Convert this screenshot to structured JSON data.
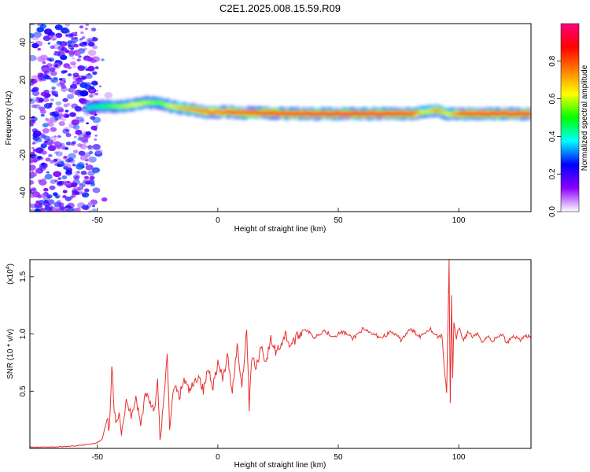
{
  "title": "C2E1.2025.008.15.59.R09",
  "chart_data": [
    {
      "type": "heatmap",
      "xlabel": "Height of straight line (km)",
      "ylabel": "Frequency (Hz)",
      "xlim": [
        -78,
        130
      ],
      "ylim": [
        -50,
        50
      ],
      "xticks": [
        -50,
        0,
        50,
        100
      ],
      "yticks": [
        -40,
        -20,
        0,
        20,
        40
      ],
      "colorbar": {
        "label": "Normalized spectral amplitude",
        "ticks": [
          "0.0",
          "0.2",
          "0.4",
          "0.6",
          "0.8"
        ],
        "tick_values": [
          0,
          0.2,
          0.4,
          0.6,
          0.8
        ],
        "range": [
          0,
          1
        ],
        "colormap": [
          "#ffffff",
          "#8c00ff",
          "#0000ff",
          "#00ffff",
          "#00ff00",
          "#ffff00",
          "#ff8000",
          "#ff0000",
          "#ff0080"
        ]
      },
      "noise_region": {
        "x": [
          -78,
          -50
        ],
        "y": [
          -50,
          50
        ],
        "level": 0.1
      },
      "ridge": {
        "x": [
          -55,
          -50,
          -45,
          -40,
          -35,
          -30,
          -25,
          -20,
          -15,
          -10,
          -5,
          0,
          5,
          10,
          20,
          30,
          40,
          50,
          60,
          70,
          80,
          85,
          90,
          95,
          100,
          110,
          120,
          130
        ],
        "freq": [
          5,
          6,
          6,
          6,
          7,
          8,
          8,
          6,
          5,
          4,
          3,
          3,
          3,
          2.5,
          2.5,
          2,
          2,
          2,
          2,
          2,
          2,
          3,
          4,
          2,
          2,
          2,
          2,
          2
        ],
        "amplitude": [
          0.35,
          0.4,
          0.5,
          0.55,
          0.6,
          0.55,
          0.5,
          0.6,
          0.7,
          0.75,
          0.8,
          0.8,
          0.85,
          0.85,
          0.88,
          0.9,
          0.92,
          0.93,
          0.93,
          0.92,
          0.9,
          0.55,
          0.75,
          0.6,
          0.85,
          0.9,
          0.9,
          0.9
        ]
      }
    },
    {
      "type": "line",
      "xlabel": "Height of straight line (km)",
      "ylabel": "SNR (10 * v/v)",
      "y_scale_label": "(x10",
      "y_scale_exponent": "4",
      "y_scale_close": ")",
      "xlim": [
        -78,
        130
      ],
      "ylim": [
        0,
        1.65
      ],
      "xticks": [
        -50,
        0,
        50,
        100
      ],
      "yticks": [
        0.5,
        1.0,
        1.5
      ],
      "ytick_labels": [
        "0.5",
        "1.0",
        "1.5"
      ],
      "color": "#e8302e",
      "series": [
        {
          "x": [
            -78,
            -70,
            -60,
            -55,
            -50,
            -48,
            -46,
            -45,
            -44,
            -43,
            -42,
            -41,
            -40,
            -38,
            -36,
            -34,
            -32,
            -30,
            -28,
            -26,
            -25,
            -24,
            -23,
            -22,
            -21,
            -20,
            -18,
            -16,
            -14,
            -12,
            -10,
            -8,
            -6,
            -4,
            -2,
            0,
            2,
            4,
            6,
            8,
            10,
            12,
            13,
            14,
            16,
            18,
            20,
            22,
            24,
            26,
            28,
            30,
            32,
            34,
            36,
            40,
            44,
            48,
            52,
            56,
            60,
            64,
            68,
            72,
            76,
            80,
            84,
            88,
            90,
            92,
            93,
            94,
            95,
            96,
            96.5,
            97,
            97.5,
            98,
            99,
            100,
            102,
            104,
            106,
            108,
            110,
            112,
            114,
            116,
            118,
            120,
            122,
            124,
            126,
            128,
            130
          ],
          "y": [
            0.01,
            0.01,
            0.02,
            0.03,
            0.05,
            0.08,
            0.25,
            0.15,
            0.75,
            0.3,
            0.2,
            0.35,
            0.15,
            0.4,
            0.3,
            0.45,
            0.2,
            0.5,
            0.4,
            0.35,
            0.6,
            0.05,
            0.3,
            0.5,
            0.82,
            0.2,
            0.55,
            0.45,
            0.6,
            0.5,
            0.55,
            0.65,
            0.5,
            0.7,
            0.55,
            0.75,
            0.6,
            0.8,
            0.5,
            0.9,
            0.55,
            1.05,
            0.37,
            0.8,
            0.7,
            0.9,
            0.75,
            0.95,
            0.85,
            0.9,
            1.0,
            0.9,
            0.95,
            1.0,
            1.05,
            0.97,
            1.03,
            0.98,
            1.02,
            0.96,
            1.04,
            1.0,
            0.97,
            1.02,
            0.95,
            1.04,
            0.98,
            1.05,
            1.0,
            0.97,
            1.0,
            0.7,
            0.5,
            1.65,
            0.4,
            1.35,
            0.6,
            1.1,
            0.95,
            1.05,
            0.95,
            1.02,
            0.97,
            1.0,
            0.93,
            0.98,
            0.94,
            0.97,
            1.0,
            0.92,
            0.98,
            0.97,
            0.95,
            0.99,
            0.96
          ]
        }
      ]
    }
  ]
}
